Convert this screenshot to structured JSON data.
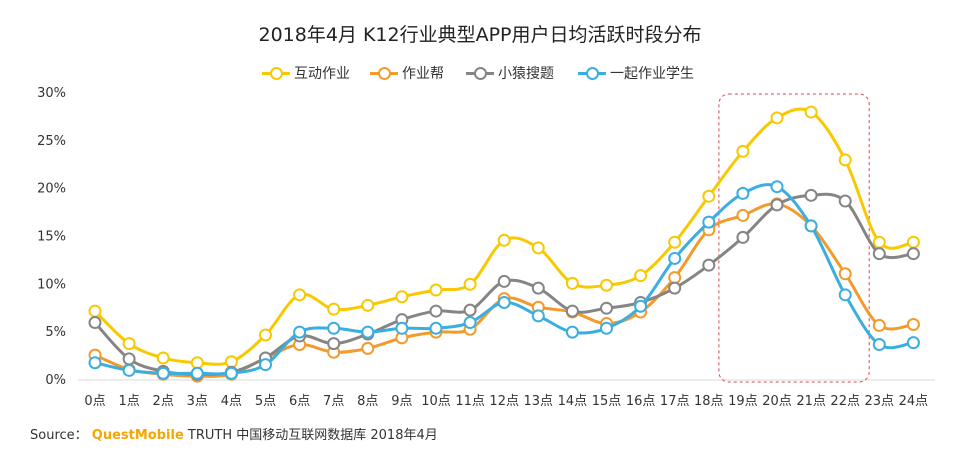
{
  "title": "2018年4月 K12行业典型APP用户日均活跃时段分布",
  "source": {
    "prefix": "Source：",
    "brand": "QuestMobile",
    "suffix": "TRUTH 中国移动互联网数据库 2018年4月"
  },
  "colors": {
    "series1": "#f8c900",
    "series2": "#f39a2d",
    "series3": "#858585",
    "series4": "#3aaee0",
    "highlight_box": "#d9474f",
    "grid": "#d9d9d9",
    "axis_text": "#333333"
  },
  "chart_data": {
    "type": "line",
    "title": "2018年4月 K12行业典型APP用户日均活跃时段分布",
    "xlabel": "",
    "ylabel": "",
    "ylim": [
      0,
      30
    ],
    "yticks": [
      "0%",
      "5%",
      "10%",
      "15%",
      "20%",
      "25%",
      "30%"
    ],
    "grid": true,
    "legend_position": "top-center",
    "categories": [
      "0点",
      "1点",
      "2点",
      "3点",
      "4点",
      "5点",
      "6点",
      "7点",
      "8点",
      "9点",
      "10点",
      "11点",
      "12点",
      "13点",
      "14点",
      "15点",
      "16点",
      "17点",
      "18点",
      "19点",
      "20点",
      "21点",
      "22点",
      "23点",
      "24点"
    ],
    "highlight_range": [
      "19点",
      "22点"
    ],
    "series": [
      {
        "name": "互动作业",
        "color": "#f8c900",
        "values": [
          7.1,
          3.7,
          2.2,
          1.7,
          1.8,
          4.6,
          8.8,
          7.3,
          7.7,
          8.6,
          9.3,
          9.9,
          14.5,
          13.7,
          10.0,
          9.8,
          10.8,
          14.3,
          19.1,
          23.8,
          27.3,
          27.9,
          22.9,
          14.3,
          14.3
        ]
      },
      {
        "name": "作业帮",
        "color": "#f39a2d",
        "values": [
          2.5,
          1.0,
          0.5,
          0.3,
          0.5,
          2.2,
          3.6,
          2.8,
          3.2,
          4.3,
          4.9,
          5.2,
          8.4,
          7.5,
          7.0,
          5.8,
          7.0,
          10.6,
          15.6,
          17.1,
          18.3,
          16.0,
          11.0,
          5.6,
          5.7
        ]
      },
      {
        "name": "小猿搜题",
        "color": "#858585",
        "values": [
          5.9,
          2.1,
          0.8,
          0.5,
          0.7,
          2.2,
          4.5,
          3.7,
          4.7,
          6.2,
          7.1,
          7.2,
          10.2,
          9.5,
          7.1,
          7.4,
          8.0,
          9.5,
          11.9,
          14.8,
          18.2,
          19.2,
          18.6,
          13.1,
          13.1
        ]
      },
      {
        "name": "一起作业学生",
        "color": "#3aaee0",
        "values": [
          1.7,
          0.9,
          0.6,
          0.6,
          0.6,
          1.5,
          4.9,
          5.3,
          4.9,
          5.3,
          5.3,
          5.9,
          8.0,
          6.6,
          4.9,
          5.3,
          7.6,
          12.6,
          16.4,
          19.4,
          20.1,
          16.0,
          8.8,
          3.6,
          3.8
        ]
      }
    ]
  }
}
